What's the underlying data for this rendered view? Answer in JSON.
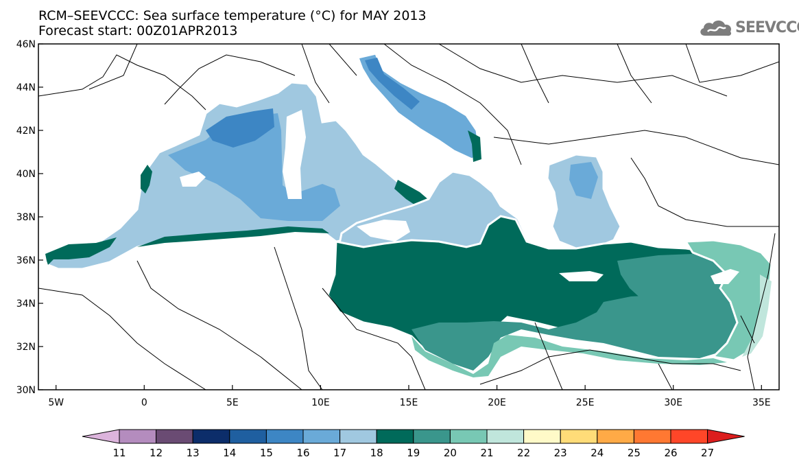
{
  "title": {
    "line1": "RCM–SEEVCCC: Sea surface temperature (°C) for MAY 2013",
    "line2": "Forecast start: 00Z01APR2013"
  },
  "logo": {
    "text": "SEEVCCC",
    "icon": "cloud-icon"
  },
  "map": {
    "region": "Mediterranean Sea",
    "lon_range": [
      -6,
      36
    ],
    "lat_range": [
      30,
      46
    ],
    "lon_ticks": [
      {
        "value": -5,
        "label": "5W"
      },
      {
        "value": 0,
        "label": "0"
      },
      {
        "value": 5,
        "label": "5E"
      },
      {
        "value": 10,
        "label": "10E"
      },
      {
        "value": 15,
        "label": "15E"
      },
      {
        "value": 20,
        "label": "20E"
      },
      {
        "value": 25,
        "label": "25E"
      },
      {
        "value": 30,
        "label": "30E"
      },
      {
        "value": 35,
        "label": "35E"
      }
    ],
    "lat_ticks": [
      {
        "value": 30,
        "label": "30N"
      },
      {
        "value": 32,
        "label": "32N"
      },
      {
        "value": 34,
        "label": "34N"
      },
      {
        "value": 36,
        "label": "36N"
      },
      {
        "value": 38,
        "label": "38N"
      },
      {
        "value": 40,
        "label": "40N"
      },
      {
        "value": 42,
        "label": "42N"
      },
      {
        "value": 44,
        "label": "44N"
      },
      {
        "value": 46,
        "label": "46N"
      }
    ]
  },
  "colorbar": {
    "labels": [
      "11",
      "12",
      "13",
      "14",
      "15",
      "16",
      "17",
      "18",
      "19",
      "20",
      "21",
      "22",
      "23",
      "24",
      "25",
      "26",
      "27"
    ],
    "colors": [
      "#dcb4dc",
      "#b48cbe",
      "#6a4b73",
      "#0c2d6a",
      "#1f5fa0",
      "#3d86c4",
      "#6aaad8",
      "#a0c8e0",
      "#006a5a",
      "#3a968c",
      "#78c8b4",
      "#c0e6dc",
      "#fffac8",
      "#ffdc78",
      "#ffaa46",
      "#ff7832",
      "#ff4628",
      "#dc1e1e"
    ]
  },
  "colors": {
    "t17": "#a0c8e0",
    "t16": "#6aaad8",
    "t15": "#3d86c4",
    "t18": "#006a5a",
    "t19": "#3a968c",
    "t20": "#78c8b4",
    "t21": "#c0e6dc"
  }
}
